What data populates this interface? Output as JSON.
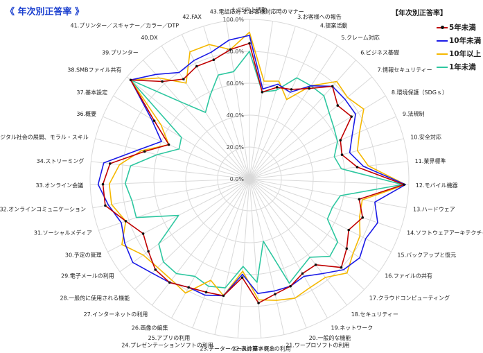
{
  "page": {
    "title": "《 年次別正答率 》",
    "legend_title": "【年次別正答率】"
  },
  "chart_data": {
    "type": "radar",
    "rlim": [
      0,
      100
    ],
    "ticks": [
      "0.0%",
      "20.0%",
      "40.0%",
      "60.0%",
      "80.0%",
      "100.0%"
    ],
    "grid": true,
    "legend": "top-right",
    "categories": [
      "1.CS向上活動",
      "2.お客様対応時のマナー",
      "3.お客様への報告",
      "4.提案活動",
      "5.クレーム対応",
      "6.ビジネス基礎",
      "7.情報セキュリティー",
      "8.環境保護（SDGｓ）",
      "9.法規制",
      "10.安全対応",
      "11.業界標準",
      "12.モバイル機器",
      "13.ハードウェア",
      "14.ソフトウェアアーキテクチャ",
      "15.バックアップと復元",
      "16.ファイルの共有",
      "17.クラウドコンピューティング",
      "18.セキュリティー",
      "19.ネットワーク",
      "20.一般的な機能",
      "21.ワープロソフトの利用",
      "22.表計算ソフトの利用",
      "23.データーベースの基本概念",
      "24.プレゼンテーションソフトの利用",
      "25.アプリの利用",
      "26.画像の編集",
      "27.インターネットの利用",
      "28.一般的に使用される機能",
      "29.電子メールの利用",
      "30.予定の管理",
      "31.ソーシャルメディア",
      "32.オンラインコミュニケーション",
      "33.オンライン会議",
      "34.ストリーミング",
      "35.デジタル社会の展開、モラル・スキル",
      "36.概要",
      "37.基本設定",
      "38.SMBファイル共有",
      "39.プリンター",
      "40.DX",
      "41.プリンター／スキャナー／カラー／DTP",
      "42.FAX",
      "43.電話応対"
    ],
    "series": [
      {
        "name": "5年未満",
        "color": "#c00000",
        "marker": true,
        "values": [
          85,
          55,
          60,
          62,
          68,
          78,
          72,
          75,
          62,
          60,
          68,
          97,
          70,
          75,
          70,
          75,
          80,
          68,
          68,
          72,
          74,
          78,
          62,
          75,
          76,
          78,
          82,
          82,
          78,
          75,
          82,
          92,
          92,
          88,
          68,
          55,
          70,
          97,
          82,
          75,
          78,
          78,
          82
        ]
      },
      {
        "name": "10年未満",
        "color": "#1a1ae6",
        "marker": false,
        "values": [
          90,
          57,
          62,
          60,
          70,
          78,
          78,
          78,
          70,
          65,
          72,
          98,
          80,
          85,
          82,
          85,
          82,
          75,
          70,
          72,
          72,
          72,
          60,
          75,
          78,
          78,
          82,
          85,
          90,
          88,
          85,
          90,
          95,
          92,
          72,
          60,
          72,
          97,
          88,
          80,
          82,
          83,
          88
        ]
      },
      {
        "name": "10年以上",
        "color": "#f5b800",
        "marker": false,
        "values": [
          92,
          62,
          64,
          55,
          70,
          82,
          80,
          84,
          75,
          70,
          75,
          98,
          72,
          73,
          78,
          80,
          85,
          78,
          78,
          80,
          78,
          76,
          58,
          75,
          68,
          82,
          80,
          80,
          82,
          90,
          82,
          88,
          88,
          82,
          70,
          55,
          65,
          97,
          85,
          72,
          88,
          88,
          82
        ]
      },
      {
        "name": "1年未満",
        "color": "#2ec7a0",
        "marker": false,
        "values": [
          80,
          55,
          58,
          70,
          70,
          70,
          65,
          62,
          60,
          55,
          58,
          96,
          58,
          55,
          55,
          68,
          70,
          62,
          65,
          70,
          40,
          65,
          55,
          70,
          72,
          70,
          75,
          75,
          70,
          50,
          75,
          75,
          78,
          75,
          60,
          48,
          50,
          97,
          65,
          50,
          58,
          68,
          68
        ]
      }
    ]
  }
}
